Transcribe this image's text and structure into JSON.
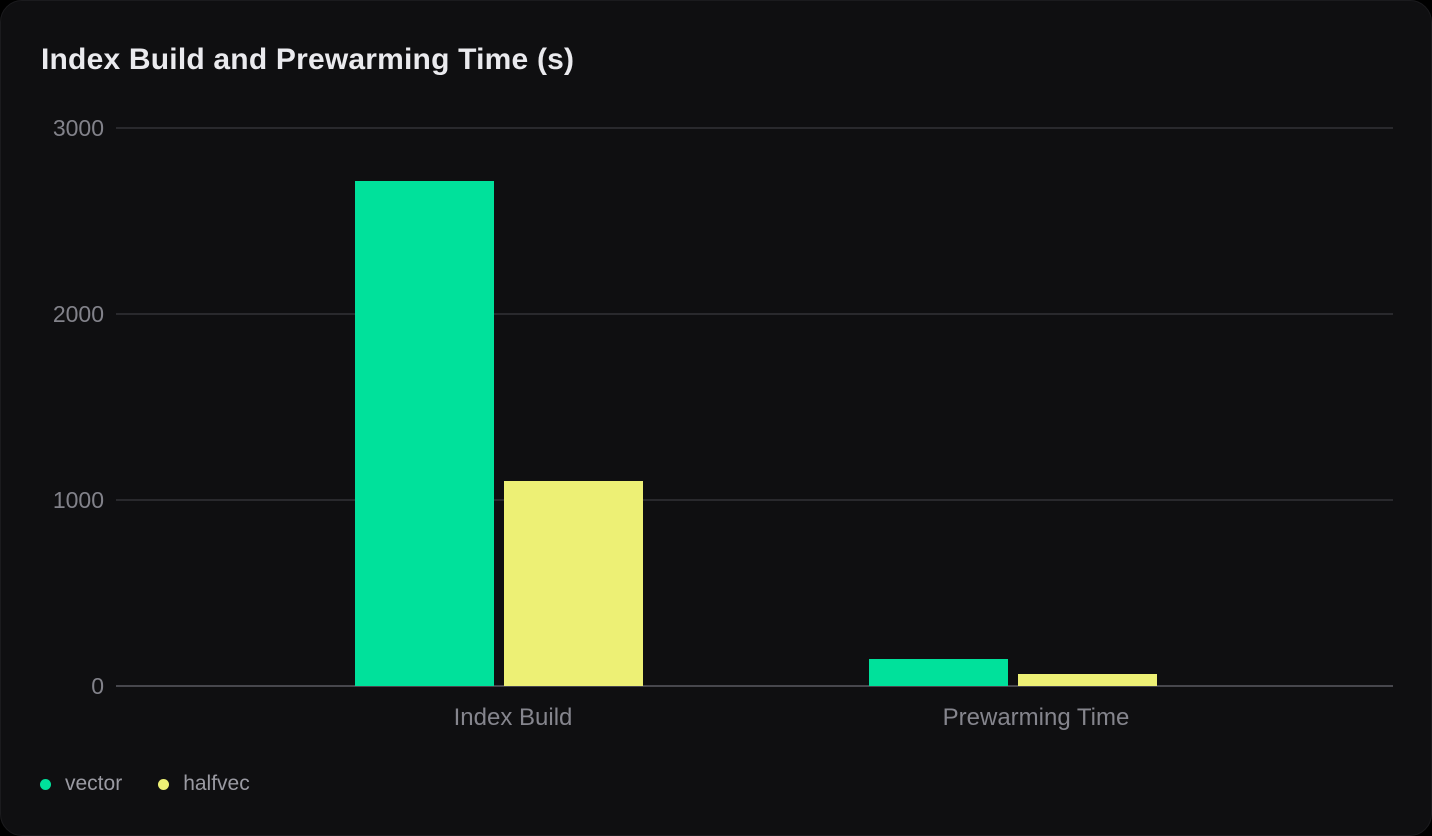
{
  "chart_data": {
    "type": "bar",
    "title": "Index Build and Prewarming Time (s)",
    "categories": [
      "Index Build",
      "Prewarming Time"
    ],
    "series": [
      {
        "name": "vector",
        "color": "#00E19B",
        "values": [
          2715,
          145
        ]
      },
      {
        "name": "halfvec",
        "color": "#EDF075",
        "values": [
          1100,
          65
        ]
      }
    ],
    "xlabel": "",
    "ylabel": "",
    "ylim": [
      0,
      3000
    ],
    "yticks": [
      0,
      1000,
      2000,
      3000
    ],
    "grid": true,
    "legend_position": "bottom-left",
    "colors": {
      "card_background": "#0F0F11",
      "page_background": "#000000",
      "gridline": "#29292D",
      "zero_line": "#47474D",
      "title_text": "#EAEAEE",
      "tick_text": "#82828A",
      "category_text": "#85858D",
      "legend_text": "#9A9AA2"
    }
  }
}
